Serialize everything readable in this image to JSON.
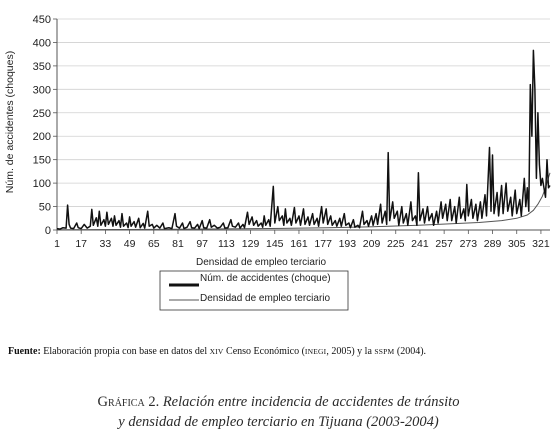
{
  "chart_data": {
    "type": "line",
    "xlabel": "Densidad de empleo terciario",
    "ylabel": "Núm. de accidentes (choques)",
    "ylim": [
      0,
      450
    ],
    "xlim": [
      1,
      327
    ],
    "yticks": [
      0,
      50,
      100,
      150,
      200,
      250,
      300,
      350,
      400,
      450
    ],
    "xticks": [
      1,
      17,
      33,
      49,
      65,
      81,
      97,
      113,
      129,
      145,
      161,
      177,
      193,
      209,
      225,
      241,
      257,
      273,
      289,
      305,
      321
    ],
    "grid": "horizontal",
    "legend_position": "bottom-center",
    "series": [
      {
        "name": "Núm. de accidentes (choque)",
        "color": "#111111",
        "points": [
          [
            1,
            3
          ],
          [
            3,
            2
          ],
          [
            5,
            5
          ],
          [
            7,
            4
          ],
          [
            8,
            53
          ],
          [
            9,
            12
          ],
          [
            10,
            4
          ],
          [
            12,
            3
          ],
          [
            14,
            15
          ],
          [
            15,
            5
          ],
          [
            17,
            3
          ],
          [
            19,
            12
          ],
          [
            21,
            4
          ],
          [
            23,
            8
          ],
          [
            24,
            44
          ],
          [
            25,
            10
          ],
          [
            27,
            26
          ],
          [
            28,
            8
          ],
          [
            29,
            40
          ],
          [
            30,
            10
          ],
          [
            32,
            22
          ],
          [
            33,
            8
          ],
          [
            34,
            38
          ],
          [
            35,
            12
          ],
          [
            37,
            25
          ],
          [
            38,
            8
          ],
          [
            39,
            30
          ],
          [
            40,
            10
          ],
          [
            42,
            20
          ],
          [
            43,
            6
          ],
          [
            44,
            35
          ],
          [
            45,
            8
          ],
          [
            47,
            15
          ],
          [
            48,
            5
          ],
          [
            49,
            28
          ],
          [
            50,
            8
          ],
          [
            52,
            18
          ],
          [
            53,
            6
          ],
          [
            55,
            25
          ],
          [
            56,
            5
          ],
          [
            58,
            14
          ],
          [
            59,
            4
          ],
          [
            61,
            40
          ],
          [
            62,
            8
          ],
          [
            64,
            12
          ],
          [
            65,
            4
          ],
          [
            67,
            10
          ],
          [
            69,
            4
          ],
          [
            71,
            15
          ],
          [
            72,
            3
          ],
          [
            75,
            5
          ],
          [
            77,
            3
          ],
          [
            79,
            35
          ],
          [
            80,
            8
          ],
          [
            82,
            4
          ],
          [
            84,
            15
          ],
          [
            85,
            3
          ],
          [
            87,
            6
          ],
          [
            89,
            18
          ],
          [
            90,
            5
          ],
          [
            92,
            4
          ],
          [
            94,
            12
          ],
          [
            95,
            3
          ],
          [
            97,
            20
          ],
          [
            98,
            5
          ],
          [
            100,
            4
          ],
          [
            102,
            22
          ],
          [
            103,
            6
          ],
          [
            105,
            10
          ],
          [
            107,
            4
          ],
          [
            109,
            6
          ],
          [
            111,
            15
          ],
          [
            112,
            4
          ],
          [
            114,
            5
          ],
          [
            116,
            22
          ],
          [
            117,
            8
          ],
          [
            119,
            6
          ],
          [
            121,
            15
          ],
          [
            122,
            4
          ],
          [
            124,
            12
          ],
          [
            125,
            5
          ],
          [
            127,
            38
          ],
          [
            128,
            12
          ],
          [
            130,
            28
          ],
          [
            131,
            10
          ],
          [
            133,
            20
          ],
          [
            134,
            8
          ],
          [
            136,
            15
          ],
          [
            137,
            6
          ],
          [
            138,
            30
          ],
          [
            139,
            10
          ],
          [
            141,
            22
          ],
          [
            142,
            8
          ],
          [
            144,
            93
          ],
          [
            145,
            15
          ],
          [
            147,
            50
          ],
          [
            148,
            20
          ],
          [
            150,
            30
          ],
          [
            151,
            10
          ],
          [
            152,
            45
          ],
          [
            153,
            15
          ],
          [
            155,
            25
          ],
          [
            156,
            10
          ],
          [
            158,
            48
          ],
          [
            159,
            15
          ],
          [
            161,
            30
          ],
          [
            162,
            10
          ],
          [
            164,
            45
          ],
          [
            165,
            12
          ],
          [
            167,
            28
          ],
          [
            168,
            10
          ],
          [
            170,
            35
          ],
          [
            171,
            12
          ],
          [
            173,
            25
          ],
          [
            174,
            8
          ],
          [
            176,
            50
          ],
          [
            177,
            15
          ],
          [
            179,
            45
          ],
          [
            180,
            12
          ],
          [
            182,
            30
          ],
          [
            183,
            10
          ],
          [
            185,
            20
          ],
          [
            186,
            8
          ],
          [
            188,
            25
          ],
          [
            189,
            8
          ],
          [
            191,
            35
          ],
          [
            192,
            10
          ],
          [
            194,
            15
          ],
          [
            195,
            5
          ],
          [
            197,
            22
          ],
          [
            198,
            6
          ],
          [
            200,
            10
          ],
          [
            201,
            5
          ],
          [
            203,
            40
          ],
          [
            204,
            12
          ],
          [
            206,
            20
          ],
          [
            207,
            8
          ],
          [
            209,
            30
          ],
          [
            210,
            10
          ],
          [
            212,
            35
          ],
          [
            213,
            12
          ],
          [
            215,
            55
          ],
          [
            216,
            15
          ],
          [
            218,
            40
          ],
          [
            219,
            12
          ],
          [
            220,
            165
          ],
          [
            221,
            20
          ],
          [
            223,
            60
          ],
          [
            224,
            25
          ],
          [
            226,
            40
          ],
          [
            227,
            10
          ],
          [
            229,
            50
          ],
          [
            230,
            15
          ],
          [
            232,
            35
          ],
          [
            233,
            10
          ],
          [
            235,
            60
          ],
          [
            236,
            20
          ],
          [
            238,
            30
          ],
          [
            239,
            10
          ],
          [
            240,
            122
          ],
          [
            241,
            20
          ],
          [
            243,
            45
          ],
          [
            244,
            15
          ],
          [
            246,
            50
          ],
          [
            247,
            20
          ],
          [
            249,
            35
          ],
          [
            250,
            10
          ],
          [
            252,
            40
          ],
          [
            253,
            15
          ],
          [
            255,
            60
          ],
          [
            256,
            25
          ],
          [
            258,
            55
          ],
          [
            259,
            20
          ],
          [
            261,
            65
          ],
          [
            262,
            20
          ],
          [
            264,
            50
          ],
          [
            265,
            15
          ],
          [
            267,
            70
          ],
          [
            268,
            25
          ],
          [
            270,
            45
          ],
          [
            271,
            20
          ],
          [
            272,
            97
          ],
          [
            273,
            30
          ],
          [
            275,
            65
          ],
          [
            276,
            25
          ],
          [
            278,
            55
          ],
          [
            279,
            20
          ],
          [
            281,
            60
          ],
          [
            282,
            25
          ],
          [
            284,
            75
          ],
          [
            285,
            30
          ],
          [
            287,
            176
          ],
          [
            288,
            40
          ],
          [
            289,
            160
          ],
          [
            290,
            35
          ],
          [
            292,
            80
          ],
          [
            293,
            30
          ],
          [
            295,
            95
          ],
          [
            296,
            35
          ],
          [
            298,
            100
          ],
          [
            299,
            40
          ],
          [
            301,
            70
          ],
          [
            302,
            30
          ],
          [
            304,
            85
          ],
          [
            305,
            35
          ],
          [
            307,
            65
          ],
          [
            308,
            30
          ],
          [
            310,
            110
          ],
          [
            311,
            50
          ],
          [
            312,
            90
          ],
          [
            313,
            40
          ],
          [
            314,
            310
          ],
          [
            315,
            200
          ],
          [
            316,
            383
          ],
          [
            317,
            300
          ],
          [
            318,
            110
          ],
          [
            319,
            250
          ],
          [
            320,
            140
          ],
          [
            321,
            95
          ],
          [
            322,
            110
          ],
          [
            324,
            70
          ],
          [
            325,
            150
          ],
          [
            326,
            90
          ],
          [
            327,
            95
          ]
        ]
      },
      {
        "name": "Densidad de empleo terciario",
        "color": "#555555",
        "points": [
          [
            1,
            0.5
          ],
          [
            40,
            1
          ],
          [
            80,
            1.5
          ],
          [
            120,
            2.5
          ],
          [
            150,
            3.5
          ],
          [
            180,
            5
          ],
          [
            210,
            7
          ],
          [
            240,
            10
          ],
          [
            260,
            13
          ],
          [
            280,
            16
          ],
          [
            295,
            20
          ],
          [
            305,
            25
          ],
          [
            312,
            32
          ],
          [
            316,
            42
          ],
          [
            319,
            55
          ],
          [
            322,
            72
          ],
          [
            324,
            90
          ],
          [
            326,
            112
          ],
          [
            327,
            122
          ]
        ]
      }
    ]
  },
  "source": {
    "label": "Fuente:",
    "part1": " Elaboración propia con base en datos del ",
    "sc1": "XIV",
    "part2": " Censo Económico (",
    "sc2": "INEGI",
    "part3": ", 2005) y la ",
    "sc3": "SSPM",
    "part4": " (2004)."
  },
  "caption": {
    "number": "Gráfica 2.",
    "line1": "Relación entre incidencia de accidentes de tránsito",
    "line2": "y densidad de empleo terciario en Tijuana (2003-2004)"
  }
}
